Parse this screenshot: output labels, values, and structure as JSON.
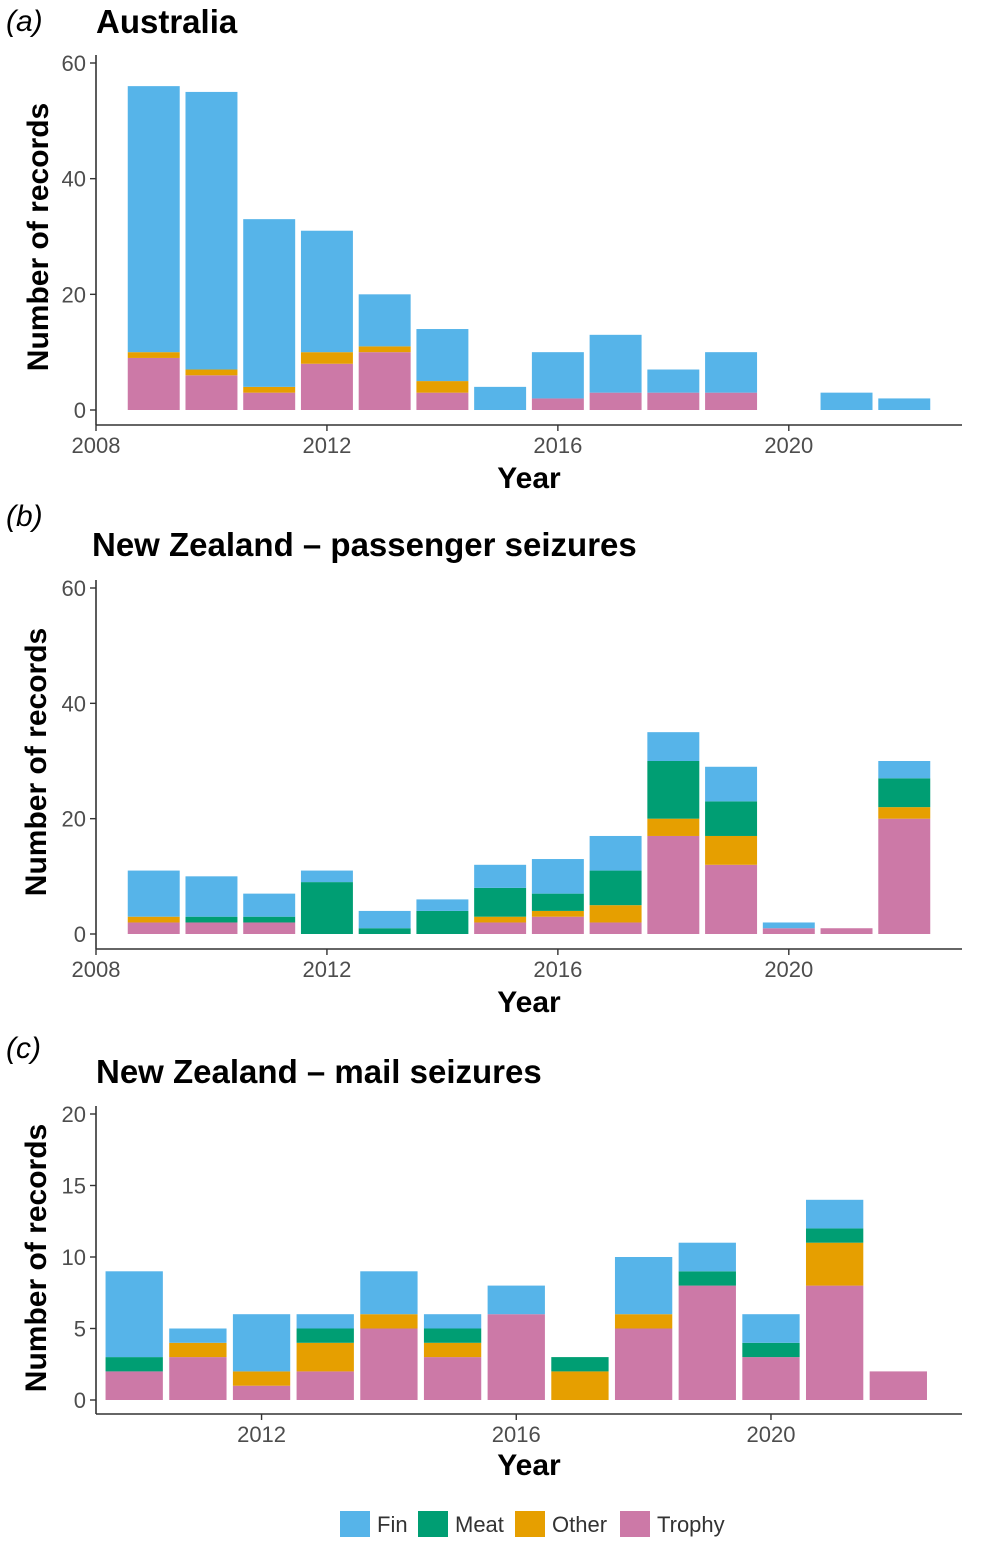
{
  "colors": {
    "Fin": "#56B4E9",
    "Meat": "#009E73",
    "Other": "#E69F00",
    "Trophy": "#CC79A7"
  },
  "legend": {
    "items": [
      {
        "key": "Fin",
        "label": "Fin"
      },
      {
        "key": "Meat",
        "label": "Meat"
      },
      {
        "key": "Other",
        "label": "Other"
      },
      {
        "key": "Trophy",
        "label": "Trophy"
      }
    ]
  },
  "chart_data": [
    {
      "type": "bar",
      "stacked": true,
      "panel_label": "(a)",
      "title": "Australia",
      "xlabel": "Year",
      "ylabel": "Number  of records",
      "ylim": [
        0,
        60
      ],
      "yticks": [
        0,
        20,
        40,
        60
      ],
      "xticks": [
        2008,
        2012,
        2016,
        2020
      ],
      "xlim": [
        2008,
        2023
      ],
      "legend": "bottom",
      "grid": false,
      "x": [
        2009,
        2010,
        2011,
        2012,
        2013,
        2014,
        2015,
        2016,
        2017,
        2018,
        2019,
        2020,
        2021,
        2022
      ],
      "series": [
        {
          "name": "Trophy",
          "values": [
            9,
            6,
            3,
            8,
            10,
            3,
            0,
            2,
            3,
            3,
            3,
            0,
            0,
            0
          ]
        },
        {
          "name": "Other",
          "values": [
            1,
            1,
            1,
            2,
            1,
            2,
            0,
            0,
            0,
            0,
            0,
            0,
            0,
            0
          ]
        },
        {
          "name": "Meat",
          "values": [
            0,
            0,
            0,
            0,
            0,
            0,
            0,
            0,
            0,
            0,
            0,
            0,
            0,
            0
          ]
        },
        {
          "name": "Fin",
          "values": [
            46,
            48,
            29,
            21,
            9,
            9,
            4,
            8,
            10,
            4,
            7,
            0,
            3,
            2
          ]
        }
      ]
    },
    {
      "type": "bar",
      "stacked": true,
      "panel_label": "(b)",
      "title": "New Zealand – passenger seizures",
      "xlabel": "Year",
      "ylabel": "Number of records",
      "ylim": [
        0,
        60
      ],
      "yticks": [
        0,
        20,
        40,
        60
      ],
      "xticks": [
        2008,
        2012,
        2016,
        2020
      ],
      "xlim": [
        2008,
        2023
      ],
      "legend": "bottom",
      "grid": false,
      "x": [
        2009,
        2010,
        2011,
        2012,
        2013,
        2014,
        2015,
        2016,
        2017,
        2018,
        2019,
        2020,
        2021,
        2022
      ],
      "series": [
        {
          "name": "Trophy",
          "values": [
            2,
            2,
            2,
            0,
            0,
            0,
            2,
            3,
            2,
            17,
            12,
            1,
            1,
            20
          ]
        },
        {
          "name": "Other",
          "values": [
            1,
            0,
            0,
            0,
            0,
            0,
            1,
            1,
            3,
            3,
            5,
            0,
            0,
            2
          ]
        },
        {
          "name": "Meat",
          "values": [
            0,
            1,
            1,
            9,
            1,
            4,
            5,
            3,
            6,
            10,
            6,
            0,
            0,
            5
          ]
        },
        {
          "name": "Fin",
          "values": [
            8,
            7,
            4,
            2,
            3,
            2,
            4,
            6,
            6,
            5,
            6,
            1,
            0,
            3
          ]
        }
      ]
    },
    {
      "type": "bar",
      "stacked": true,
      "panel_label": "(c)",
      "title": "New Zealand – mail seizures",
      "xlabel": "Year",
      "ylabel": "Number of records",
      "ylim": [
        0,
        20
      ],
      "yticks": [
        0,
        5,
        10,
        15,
        20
      ],
      "xticks": [
        2012,
        2016,
        2020
      ],
      "xlim": [
        2009.4,
        2023
      ],
      "legend": "bottom",
      "grid": false,
      "x": [
        2010,
        2011,
        2012,
        2013,
        2014,
        2015,
        2016,
        2017,
        2018,
        2019,
        2020,
        2021,
        2022
      ],
      "series": [
        {
          "name": "Trophy",
          "values": [
            2,
            3,
            1,
            2,
            5,
            3,
            6,
            0,
            5,
            8,
            3,
            8,
            2
          ]
        },
        {
          "name": "Other",
          "values": [
            0,
            1,
            1,
            2,
            1,
            1,
            0,
            2,
            1,
            0,
            0,
            3,
            0
          ]
        },
        {
          "name": "Meat",
          "values": [
            1,
            0,
            0,
            1,
            0,
            1,
            0,
            1,
            0,
            1,
            1,
            1,
            0
          ]
        },
        {
          "name": "Fin",
          "values": [
            6,
            1,
            4,
            1,
            3,
            1,
            2,
            0,
            4,
            2,
            2,
            2,
            0
          ]
        }
      ]
    }
  ]
}
